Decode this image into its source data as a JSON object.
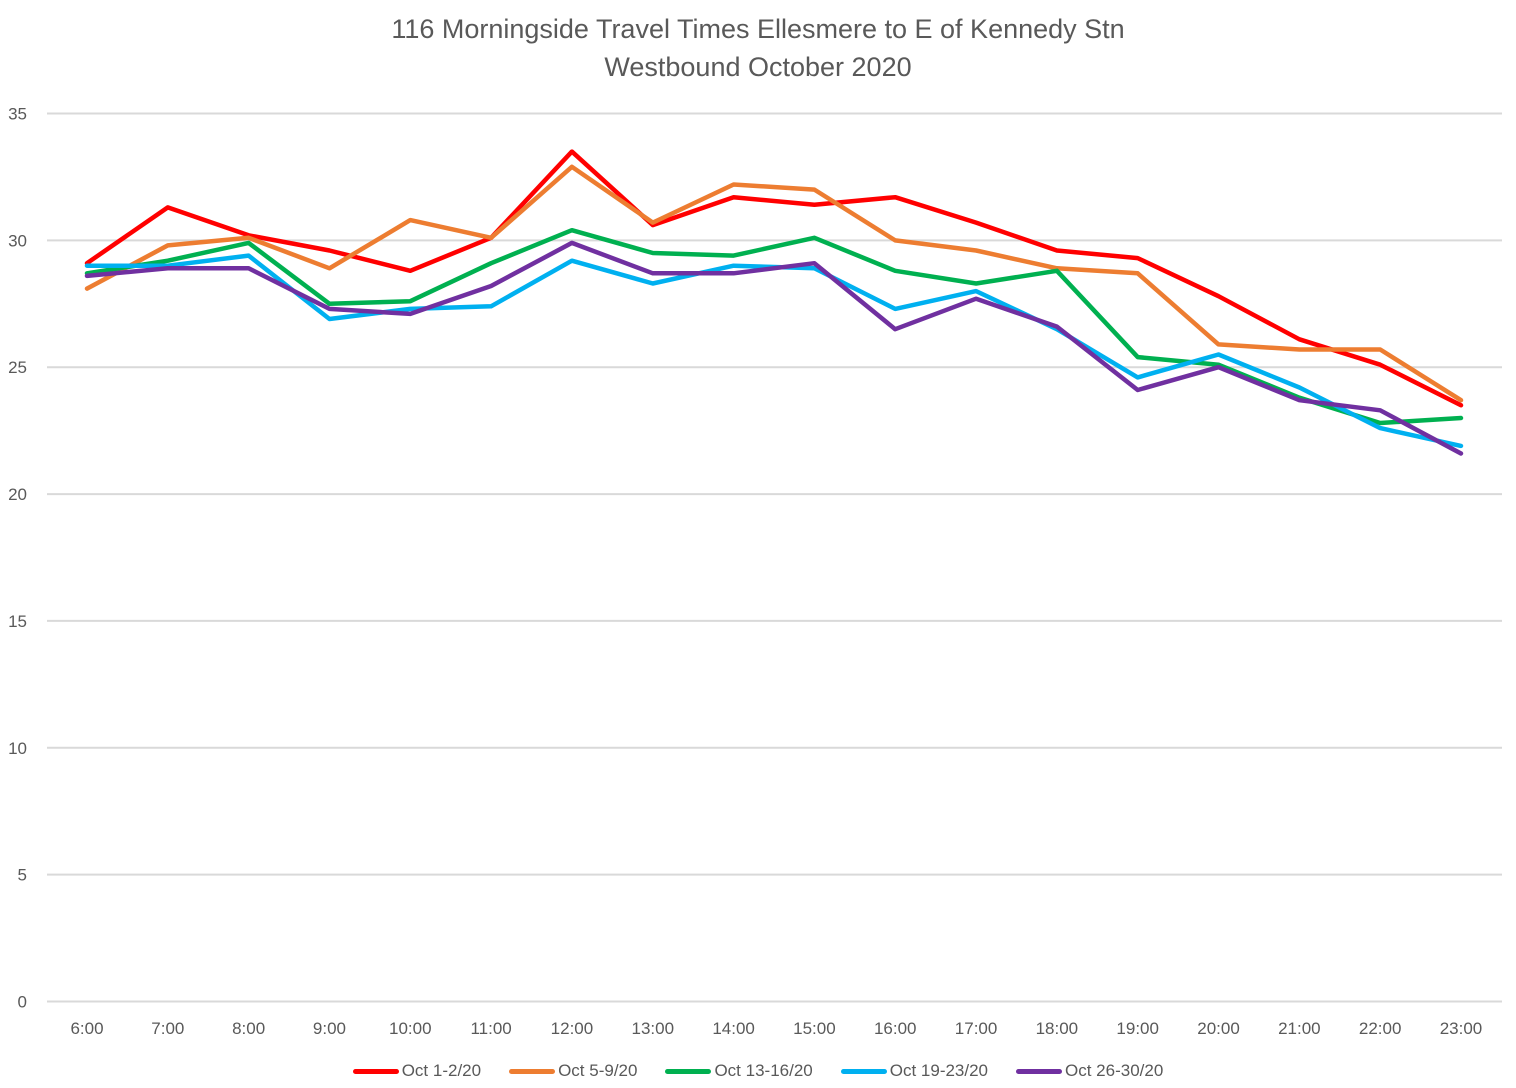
{
  "chart_data": {
    "type": "line",
    "title": "116 Morningside Travel Times Ellesmere to E of Kennedy Stn",
    "subtitle": "Westbound  October 2020",
    "xlabel": "",
    "ylabel": "",
    "ylim": [
      0,
      35
    ],
    "yticks": [
      0,
      5,
      10,
      15,
      20,
      25,
      30,
      35
    ],
    "grid": true,
    "legend_position": "bottom",
    "categories": [
      "6:00",
      "7:00",
      "8:00",
      "9:00",
      "10:00",
      "11:00",
      "12:00",
      "13:00",
      "14:00",
      "15:00",
      "16:00",
      "17:00",
      "18:00",
      "19:00",
      "20:00",
      "21:00",
      "22:00",
      "23:00"
    ],
    "series": [
      {
        "name": "Oct 1-2/20",
        "color": "#ff0000",
        "values": [
          29.1,
          31.3,
          30.2,
          29.6,
          28.8,
          30.1,
          33.5,
          30.6,
          31.7,
          31.4,
          31.7,
          30.7,
          29.6,
          29.3,
          27.8,
          26.1,
          25.1,
          23.5
        ]
      },
      {
        "name": "Oct 5-9/20",
        "color": "#ed7d31",
        "values": [
          28.1,
          29.8,
          30.1,
          28.9,
          30.8,
          30.1,
          32.9,
          30.7,
          32.2,
          32.0,
          30.0,
          29.6,
          28.9,
          28.7,
          25.9,
          25.7,
          25.7,
          23.7
        ]
      },
      {
        "name": "Oct 13-16/20",
        "color": "#00b050",
        "values": [
          28.7,
          29.2,
          29.9,
          27.5,
          27.6,
          29.1,
          30.4,
          29.5,
          29.4,
          30.1,
          28.8,
          28.3,
          28.8,
          25.4,
          25.1,
          23.8,
          22.8,
          23.0
        ]
      },
      {
        "name": "Oct 19-23/20",
        "color": "#00b0f0",
        "values": [
          29.0,
          29.0,
          29.4,
          26.9,
          27.3,
          27.4,
          29.2,
          28.3,
          29.0,
          28.9,
          27.3,
          28.0,
          26.5,
          24.6,
          25.5,
          24.2,
          22.6,
          21.9
        ]
      },
      {
        "name": "Oct 26-30/20",
        "color": "#7030a0",
        "values": [
          28.6,
          28.9,
          28.9,
          27.3,
          27.1,
          28.2,
          29.9,
          28.7,
          28.7,
          29.1,
          26.5,
          27.7,
          26.6,
          24.1,
          25.0,
          23.7,
          23.3,
          21.6
        ]
      }
    ]
  }
}
